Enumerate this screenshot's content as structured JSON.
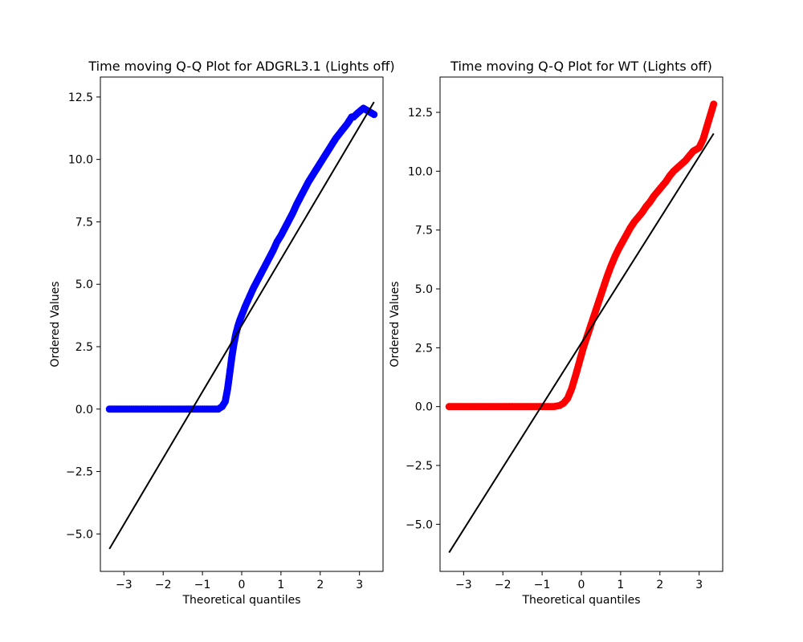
{
  "chart_data": [
    {
      "type": "scatter",
      "title": "Time moving Q-Q Plot for ADGRL3.1 (Lights off)",
      "xlabel": "Theoretical quantiles",
      "ylabel": "Ordered Values",
      "xlim": [
        -3.6,
        3.6
      ],
      "ylim": [
        -6.5,
        13.3
      ],
      "xticks": [
        -3,
        -2,
        -1,
        0,
        1,
        2,
        3
      ],
      "xtick_labels": [
        "−3",
        "−2",
        "−1",
        "0",
        "1",
        "2",
        "3"
      ],
      "yticks": [
        -5.0,
        -2.5,
        0.0,
        2.5,
        5.0,
        7.5,
        10.0,
        12.5
      ],
      "ytick_labels": [
        "−5.0",
        "−2.5",
        "0.0",
        "2.5",
        "5.0",
        "7.5",
        "10.0",
        "12.5"
      ],
      "grid": false,
      "marker_color": "#0000ff",
      "line_color": "#000000",
      "fit_line": {
        "x": [
          -3.37,
          3.37
        ],
        "y": [
          -5.6,
          12.3
        ]
      },
      "series": [
        {
          "x": [
            -3.37,
            -3.1,
            -2.9,
            -2.7,
            -2.5,
            -2.3,
            -2.1,
            -1.9,
            -1.7,
            -1.5,
            -1.3,
            -1.1,
            -0.9,
            -0.75,
            -0.6,
            -0.5,
            -0.42,
            -0.36,
            -0.3,
            -0.25,
            -0.2,
            -0.15,
            -0.1,
            -0.05,
            0.0,
            0.05,
            0.1,
            0.2,
            0.3,
            0.4,
            0.5,
            0.6,
            0.7,
            0.8,
            0.9,
            1.0,
            1.1,
            1.2,
            1.3,
            1.4,
            1.5,
            1.6,
            1.7,
            1.8,
            1.9,
            2.0,
            2.1,
            2.2,
            2.3,
            2.4,
            2.5,
            2.6,
            2.7,
            2.8,
            2.85,
            2.95,
            3.1,
            3.37
          ],
          "y": [
            0.0,
            0.0,
            0.0,
            0.0,
            0.0,
            0.0,
            0.0,
            0.0,
            0.0,
            0.0,
            0.0,
            0.0,
            0.0,
            0.0,
            0.0,
            0.1,
            0.3,
            0.8,
            1.5,
            2.1,
            2.6,
            3.0,
            3.3,
            3.55,
            3.75,
            3.95,
            4.15,
            4.5,
            4.85,
            5.15,
            5.45,
            5.75,
            6.05,
            6.35,
            6.7,
            6.95,
            7.25,
            7.55,
            7.85,
            8.2,
            8.5,
            8.8,
            9.1,
            9.35,
            9.6,
            9.85,
            10.1,
            10.35,
            10.6,
            10.85,
            11.05,
            11.25,
            11.45,
            11.7,
            11.7,
            11.85,
            12.05,
            11.8
          ]
        }
      ]
    },
    {
      "type": "scatter",
      "title": "Time moving Q-Q Plot for WT (Lights off)",
      "xlabel": "Theoretical quantiles",
      "ylabel": "Ordered Values",
      "xlim": [
        -3.6,
        3.6
      ],
      "ylim": [
        -7.0,
        14.0
      ],
      "xticks": [
        -3,
        -2,
        -1,
        0,
        1,
        2,
        3
      ],
      "xtick_labels": [
        "−3",
        "−2",
        "−1",
        "0",
        "1",
        "2",
        "3"
      ],
      "yticks": [
        -5.0,
        -2.5,
        0.0,
        2.5,
        5.0,
        7.5,
        10.0,
        12.5
      ],
      "ytick_labels": [
        "−5.0",
        "−2.5",
        "0.0",
        "2.5",
        "5.0",
        "7.5",
        "10.0",
        "12.5"
      ],
      "grid": false,
      "marker_color": "#ff0000",
      "line_color": "#000000",
      "fit_line": {
        "x": [
          -3.37,
          3.37
        ],
        "y": [
          -6.2,
          11.6
        ]
      },
      "series": [
        {
          "x": [
            -3.37,
            -3.1,
            -2.9,
            -2.7,
            -2.5,
            -2.3,
            -2.1,
            -1.9,
            -1.7,
            -1.5,
            -1.3,
            -1.1,
            -0.9,
            -0.7,
            -0.55,
            -0.45,
            -0.35,
            -0.25,
            -0.15,
            -0.05,
            0.05,
            0.15,
            0.25,
            0.35,
            0.45,
            0.55,
            0.65,
            0.75,
            0.85,
            0.95,
            1.05,
            1.15,
            1.25,
            1.35,
            1.45,
            1.55,
            1.65,
            1.75,
            1.85,
            1.95,
            2.05,
            2.15,
            2.25,
            2.35,
            2.45,
            2.55,
            2.65,
            2.75,
            2.85,
            3.0,
            3.1,
            3.37
          ],
          "y": [
            0.0,
            0.0,
            0.0,
            0.0,
            0.0,
            0.0,
            0.0,
            0.0,
            0.0,
            0.0,
            0.0,
            0.0,
            0.0,
            0.0,
            0.05,
            0.15,
            0.35,
            0.75,
            1.3,
            1.9,
            2.5,
            3.0,
            3.5,
            4.0,
            4.5,
            5.0,
            5.5,
            5.95,
            6.35,
            6.7,
            7.0,
            7.3,
            7.6,
            7.85,
            8.05,
            8.25,
            8.5,
            8.7,
            8.95,
            9.15,
            9.35,
            9.55,
            9.8,
            10.0,
            10.15,
            10.3,
            10.45,
            10.65,
            10.85,
            11.0,
            11.35,
            12.85
          ]
        }
      ]
    }
  ]
}
